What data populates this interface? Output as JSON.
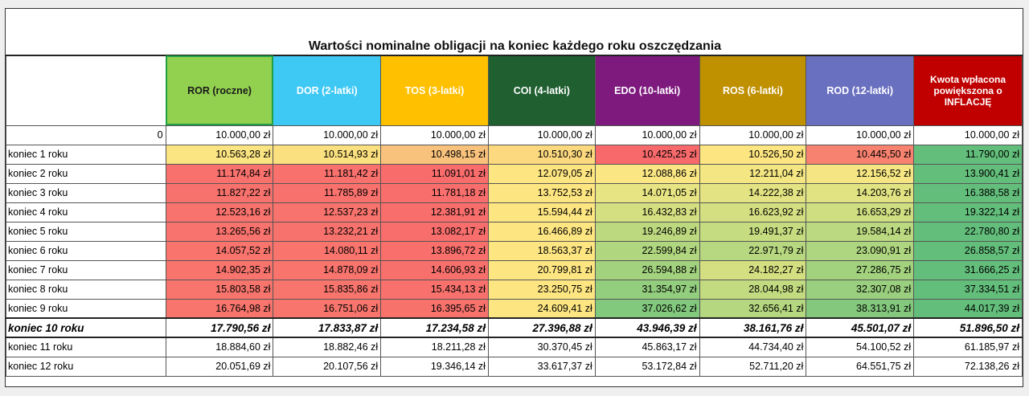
{
  "title": "Wartości nominalne obligacji na koniec każdego roku oszczędzania",
  "columns": [
    {
      "label": "ROR (roczne)",
      "bg": "#92d050",
      "fg": "#1a1a1a"
    },
    {
      "label": "DOR (2-latki)",
      "bg": "#3ec8f4",
      "fg": "#ffffff"
    },
    {
      "label": "TOS (3-latki)",
      "bg": "#ffc000",
      "fg": "#ffffff"
    },
    {
      "label": "COI (4-latki)",
      "bg": "#1f5f30",
      "fg": "#ffffff"
    },
    {
      "label": "EDO (10-latki)",
      "bg": "#7e1a7e",
      "fg": "#ffffff"
    },
    {
      "label": "ROS (6-latki)",
      "bg": "#bf9000",
      "fg": "#ffffff"
    },
    {
      "label": "ROD (12-latki)",
      "bg": "#6a70c0",
      "fg": "#ffffff"
    },
    {
      "label": "Kwota wpłacona powiększona o INFLACJĘ",
      "bg": "#c00000",
      "fg": "#ffffff"
    }
  ],
  "rows": [
    {
      "label": "0",
      "label_align": "right",
      "values": [
        "10.000,00 zł",
        "10.000,00 zł",
        "10.000,00 zł",
        "10.000,00 zł",
        "10.000,00 zł",
        "10.000,00 zł",
        "10.000,00 zł",
        "10.000,00 zł"
      ],
      "colors": [
        "#ffffff",
        "#ffffff",
        "#ffffff",
        "#ffffff",
        "#ffffff",
        "#ffffff",
        "#ffffff",
        "#ffffff"
      ]
    },
    {
      "label": "koniec 1 roku",
      "values": [
        "10.563,28 zł",
        "10.514,93 zł",
        "10.498,15 zł",
        "10.510,30 zł",
        "10.425,25 zł",
        "10.526,50 zł",
        "10.445,50 zł",
        "11.790,00 zł"
      ],
      "colors": [
        "#fbe482",
        "#fbe07f",
        "#f9c27c",
        "#fcd97f",
        "#f8696b",
        "#fde581",
        "#f7826f",
        "#63be7b"
      ]
    },
    {
      "label": "koniec 2 roku",
      "values": [
        "11.174,84 zł",
        "11.181,42 zł",
        "11.091,01 zł",
        "12.079,05 zł",
        "12.088,86 zł",
        "12.211,04 zł",
        "12.156,52 zł",
        "13.900,41 zł"
      ],
      "colors": [
        "#f8716d",
        "#f8716d",
        "#f86c6c",
        "#fde582",
        "#fae683",
        "#f3e683",
        "#f5e683",
        "#63be7b"
      ]
    },
    {
      "label": "koniec 3 roku",
      "values": [
        "11.827,22 zł",
        "11.785,89 zł",
        "11.781,18 zł",
        "13.752,53 zł",
        "14.071,05 zł",
        "14.222,38 zł",
        "14.203,76 zł",
        "16.388,58 zł"
      ],
      "colors": [
        "#f8726d",
        "#f8716d",
        "#f86e6c",
        "#fde582",
        "#e6e483",
        "#e3e383",
        "#e1e383",
        "#63be7b"
      ]
    },
    {
      "label": "koniec 4 roku",
      "values": [
        "12.523,16 zł",
        "12.537,23 zł",
        "12.381,91 zł",
        "15.594,44 zł",
        "16.432,83 zł",
        "16.623,92 zł",
        "16.653,29 zł",
        "19.322,14 zł"
      ],
      "colors": [
        "#f8736d",
        "#f8736d",
        "#f86e6c",
        "#fde582",
        "#d4df82",
        "#d4df82",
        "#d0de82",
        "#63be7b"
      ]
    },
    {
      "label": "koniec 5 roku",
      "values": [
        "13.265,56 zł",
        "13.232,21 zł",
        "13.082,17 zł",
        "16.466,89 zł",
        "19.246,89 zł",
        "19.491,37 zł",
        "19.584,14 zł",
        "22.780,80 zł"
      ],
      "colors": [
        "#f8736d",
        "#f8726d",
        "#f86e6c",
        "#fde582",
        "#bcd980",
        "#c5dc80",
        "#bad980",
        "#63be7b"
      ]
    },
    {
      "label": "koniec 6 roku",
      "values": [
        "14.057,52 zł",
        "14.080,11 zł",
        "13.896,72 zł",
        "18.563,37 zł",
        "22.599,84 zł",
        "22.971,79 zł",
        "23.090,91 zł",
        "26.858,57 zł"
      ],
      "colors": [
        "#f8746d",
        "#f8746d",
        "#f86f6c",
        "#fde582",
        "#b0d67f",
        "#b7d880",
        "#aed57f",
        "#63be7b"
      ]
    },
    {
      "label": "koniec 7 roku",
      "values": [
        "14.902,35 zł",
        "14.878,09 zł",
        "14.606,93 zł",
        "20.799,81 zł",
        "26.594,88 zł",
        "24.182,27 zł",
        "27.286,75 zł",
        "31.666,25 zł"
      ],
      "colors": [
        "#f8746d",
        "#f8746d",
        "#f8706c",
        "#fde582",
        "#a3d27e",
        "#d3df81",
        "#a2d27e",
        "#63be7b"
      ]
    },
    {
      "label": "koniec 8 roku",
      "values": [
        "15.803,58 zł",
        "15.835,86 zł",
        "15.434,13 zł",
        "23.250,75 zł",
        "31.354,97 zł",
        "28.044,98 zł",
        "32.307,08 zł",
        "37.334,51 zł"
      ],
      "colors": [
        "#f8756d",
        "#f8756d",
        "#f8716c",
        "#fde582",
        "#93cd7e",
        "#c3db80",
        "#99cf7e",
        "#63be7b"
      ]
    },
    {
      "label": "koniec 9 roku",
      "values": [
        "16.764,98 zł",
        "16.751,06 zł",
        "16.395,65 zł",
        "24.609,41 zł",
        "37.026,62 zł",
        "32.656,41 zł",
        "38.313,91 zł",
        "44.017,39 zł"
      ],
      "colors": [
        "#f8756d",
        "#f8756d",
        "#f8726c",
        "#fde582",
        "#82c87d",
        "#b4d77f",
        "#83c87d",
        "#63be7b"
      ]
    },
    {
      "label": "koniec 10 roku",
      "bold": true,
      "values": [
        "17.790,56 zł",
        "17.833,87 zł",
        "17.234,58 zł",
        "27.396,88 zł",
        "43.946,39 zł",
        "38.161,76 zł",
        "45.501,07 zł",
        "51.896,50 zł"
      ],
      "colors": [
        "#ffffff",
        "#ffffff",
        "#ffffff",
        "#ffffff",
        "#ffffff",
        "#ffffff",
        "#ffffff",
        "#ffffff"
      ]
    },
    {
      "label": "koniec 11 roku",
      "values": [
        "18.884,60 zł",
        "18.882,46 zł",
        "18.211,28 zł",
        "30.370,45 zł",
        "45.863,17 zł",
        "44.734,40 zł",
        "54.100,52 zł",
        "61.185,97 zł"
      ],
      "colors": [
        "#ffffff",
        "#ffffff",
        "#ffffff",
        "#ffffff",
        "#ffffff",
        "#ffffff",
        "#ffffff",
        "#ffffff"
      ]
    },
    {
      "label": "koniec 12 roku",
      "values": [
        "20.051,69 zł",
        "20.107,56 zł",
        "19.346,14 zł",
        "33.617,37 zł",
        "53.172,84 zł",
        "52.711,20 zł",
        "64.551,75 zł",
        "72.138,26 zł"
      ],
      "colors": [
        "#ffffff",
        "#ffffff",
        "#ffffff",
        "#ffffff",
        "#ffffff",
        "#ffffff",
        "#ffffff",
        "#ffffff"
      ]
    }
  ]
}
